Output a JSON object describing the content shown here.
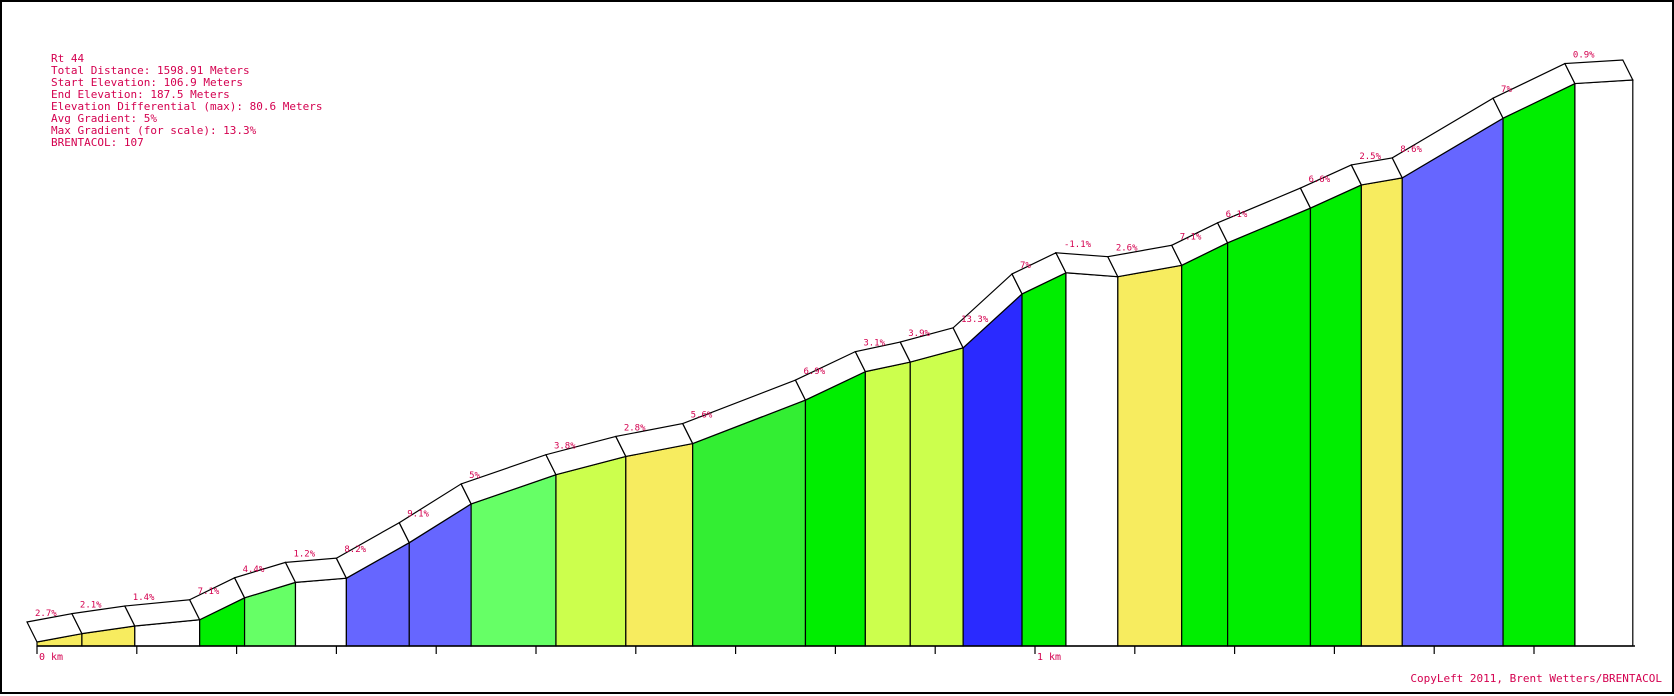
{
  "info": {
    "route": "Rt 44",
    "total_distance": "Total Distance: 1598.91 Meters",
    "start_elevation": "Start Elevation: 106.9 Meters",
    "end_elevation": "End Elevation: 187.5 Meters",
    "elevation_differential": "Elevation Differential (max): 80.6 Meters",
    "avg_gradient": "Avg Gradient: 5%",
    "max_gradient": "Max Gradient (for scale): 13.3%",
    "brentacol": "BRENTACOL: 107"
  },
  "copyright": "CopyLeft 2011, Brent Wetters/BRENTACOL",
  "chart_data": {
    "type": "area",
    "title": "Rt 44",
    "x_unit": "km",
    "x_tick_labels": [
      "0 km",
      "1 km"
    ],
    "xlim": [
      0,
      1.59891
    ],
    "elevation_range": [
      106.9,
      187.5
    ],
    "segments": [
      {
        "start_km": 0.0,
        "end_km": 0.045,
        "gradient": "2.7%",
        "color": "#f7ec5f"
      },
      {
        "start_km": 0.045,
        "end_km": 0.098,
        "gradient": "2.1%",
        "color": "#f7ec5f"
      },
      {
        "start_km": 0.098,
        "end_km": 0.163,
        "gradient": "1.4%",
        "color": "#ffffff"
      },
      {
        "start_km": 0.163,
        "end_km": 0.208,
        "gradient": "7.1%",
        "color": "#00ee00"
      },
      {
        "start_km": 0.208,
        "end_km": 0.259,
        "gradient": "4.4%",
        "color": "#66ff66"
      },
      {
        "start_km": 0.259,
        "end_km": 0.31,
        "gradient": "1.2%",
        "color": "#ffffff"
      },
      {
        "start_km": 0.31,
        "end_km": 0.373,
        "gradient": "8.2%",
        "color": "#6666ff"
      },
      {
        "start_km": 0.373,
        "end_km": 0.435,
        "gradient": "9.1%",
        "color": "#6666ff"
      },
      {
        "start_km": 0.435,
        "end_km": 0.52,
        "gradient": "5%",
        "color": "#66ff66"
      },
      {
        "start_km": 0.52,
        "end_km": 0.59,
        "gradient": "3.8%",
        "color": "#ccff4d"
      },
      {
        "start_km": 0.59,
        "end_km": 0.657,
        "gradient": "2.8%",
        "color": "#f7ec5f"
      },
      {
        "start_km": 0.657,
        "end_km": 0.77,
        "gradient": "5.6%",
        "color": "#33ee33"
      },
      {
        "start_km": 0.77,
        "end_km": 0.83,
        "gradient": "6.9%",
        "color": "#00ee00"
      },
      {
        "start_km": 0.83,
        "end_km": 0.875,
        "gradient": "3.1%",
        "color": "#ccff4d"
      },
      {
        "start_km": 0.875,
        "end_km": 0.928,
        "gradient": "3.9%",
        "color": "#ccff4d"
      },
      {
        "start_km": 0.928,
        "end_km": 0.987,
        "gradient": "13.3%",
        "color": "#2a2aff"
      },
      {
        "start_km": 0.987,
        "end_km": 1.031,
        "gradient": "7%",
        "color": "#00ee00"
      },
      {
        "start_km": 1.031,
        "end_km": 1.083,
        "gradient": "-1.1%",
        "color": "#ffffff"
      },
      {
        "start_km": 1.083,
        "end_km": 1.147,
        "gradient": "2.6%",
        "color": "#f7ec5f"
      },
      {
        "start_km": 1.147,
        "end_km": 1.193,
        "gradient": "7.1%",
        "color": "#00ee00"
      },
      {
        "start_km": 1.193,
        "end_km": 1.276,
        "gradient": "6.1%",
        "color": "#00ee00"
      },
      {
        "start_km": 1.276,
        "end_km": 1.327,
        "gradient": "6.6%",
        "color": "#00ee00"
      },
      {
        "start_km": 1.327,
        "end_km": 1.368,
        "gradient": "2.5%",
        "color": "#f7ec5f"
      },
      {
        "start_km": 1.368,
        "end_km": 1.469,
        "gradient": "8.6%",
        "color": "#6666ff"
      },
      {
        "start_km": 1.469,
        "end_km": 1.541,
        "gradient": "7%",
        "color": "#00ee00"
      },
      {
        "start_km": 1.541,
        "end_km": 1.599,
        "gradient": "0.9%",
        "color": "#ffffff"
      }
    ]
  }
}
